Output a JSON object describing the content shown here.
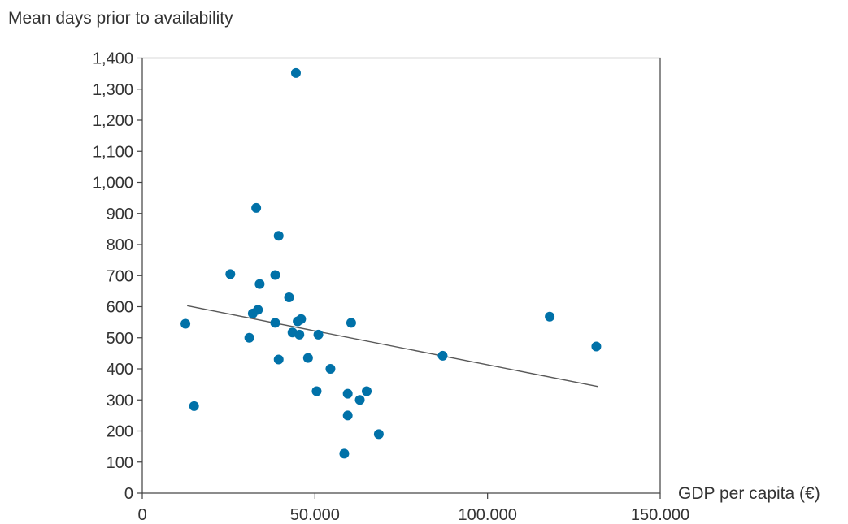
{
  "chart_data": {
    "type": "scatter",
    "ylabel": "Mean days prior to availability",
    "xlabel": "GDP per capita (€)",
    "xlim": [
      0,
      150000
    ],
    "ylim": [
      0,
      1400
    ],
    "x_ticks": [
      0,
      50000,
      100000,
      150000
    ],
    "x_tick_labels": [
      "0",
      "50.000",
      "100.000",
      "150.000"
    ],
    "y_ticks": [
      0,
      100,
      200,
      300,
      400,
      500,
      600,
      700,
      800,
      900,
      1000,
      1100,
      1200,
      1300,
      1400
    ],
    "y_tick_labels": [
      "0",
      "100",
      "200",
      "300",
      "400",
      "500",
      "600",
      "700",
      "800",
      "900",
      "1,000",
      "1,100",
      "1,200",
      "1,300",
      "1,400"
    ],
    "grid": false,
    "legend": "none",
    "series": [
      {
        "color": "#0071a8",
        "points": [
          {
            "x": 12500,
            "y": 545
          },
          {
            "x": 15000,
            "y": 280
          },
          {
            "x": 25500,
            "y": 705
          },
          {
            "x": 31000,
            "y": 500
          },
          {
            "x": 32000,
            "y": 578
          },
          {
            "x": 33000,
            "y": 918
          },
          {
            "x": 33500,
            "y": 590
          },
          {
            "x": 34000,
            "y": 673
          },
          {
            "x": 38500,
            "y": 702
          },
          {
            "x": 38500,
            "y": 548
          },
          {
            "x": 39500,
            "y": 828
          },
          {
            "x": 39500,
            "y": 430
          },
          {
            "x": 42500,
            "y": 630
          },
          {
            "x": 43500,
            "y": 517
          },
          {
            "x": 44500,
            "y": 1352
          },
          {
            "x": 45000,
            "y": 553
          },
          {
            "x": 45500,
            "y": 510
          },
          {
            "x": 46000,
            "y": 560
          },
          {
            "x": 48000,
            "y": 435
          },
          {
            "x": 50500,
            "y": 328
          },
          {
            "x": 51000,
            "y": 510
          },
          {
            "x": 54500,
            "y": 400
          },
          {
            "x": 58500,
            "y": 127
          },
          {
            "x": 59500,
            "y": 320
          },
          {
            "x": 59500,
            "y": 250
          },
          {
            "x": 60500,
            "y": 548
          },
          {
            "x": 63000,
            "y": 300
          },
          {
            "x": 65000,
            "y": 328
          },
          {
            "x": 68500,
            "y": 190
          },
          {
            "x": 87000,
            "y": 442
          },
          {
            "x": 118000,
            "y": 568
          },
          {
            "x": 131500,
            "y": 472
          }
        ]
      }
    ],
    "trendline": {
      "color": "#595959",
      "from": {
        "x": 13000,
        "y": 603
      },
      "to": {
        "x": 132000,
        "y": 343
      }
    }
  }
}
